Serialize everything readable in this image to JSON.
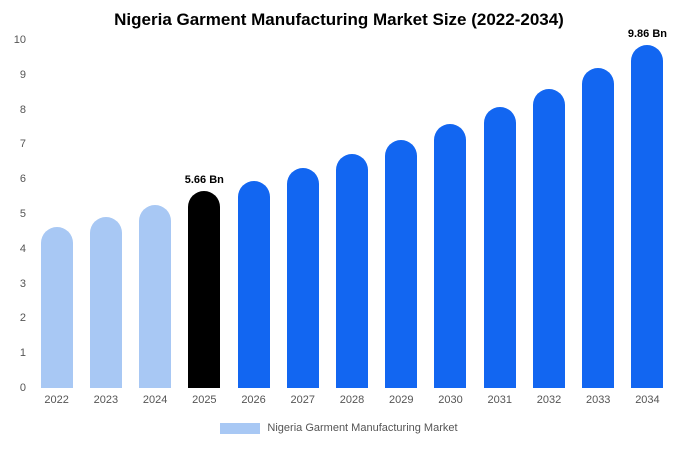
{
  "title": "Nigeria Garment Manufacturing Market Size (2022-2034)",
  "legend": {
    "label": "Nigeria Garment Manufacturing Market",
    "swatch_color": "#a8c8f4"
  },
  "colors": {
    "historical_bar": "#a8c8f4",
    "highlight_bar": "#000000",
    "forecast_bar": "#1266f1",
    "axis_text": "#555555"
  },
  "chart_data": {
    "type": "bar",
    "title": "Nigeria Garment Manufacturing Market Size (2022-2034)",
    "xlabel": "",
    "ylabel": "",
    "categories": [
      "2022",
      "2023",
      "2024",
      "2025",
      "2026",
      "2027",
      "2028",
      "2029",
      "2030",
      "2031",
      "2032",
      "2033",
      "2034"
    ],
    "values": [
      4.62,
      4.92,
      5.25,
      5.66,
      5.95,
      6.32,
      6.72,
      7.12,
      7.6,
      8.08,
      8.6,
      9.2,
      9.86
    ],
    "bar_colors": [
      "#a8c8f4",
      "#a8c8f4",
      "#a8c8f4",
      "#000000",
      "#1266f1",
      "#1266f1",
      "#1266f1",
      "#1266f1",
      "#1266f1",
      "#1266f1",
      "#1266f1",
      "#1266f1",
      "#1266f1"
    ],
    "annotations": [
      {
        "index": 3,
        "label": "5.66 Bn"
      },
      {
        "index": 12,
        "label": "9.86 Bn"
      }
    ],
    "ylim": [
      0,
      10
    ],
    "yticks": [
      0,
      1,
      2,
      3,
      4,
      5,
      6,
      7,
      8,
      9,
      10
    ],
    "grid": false,
    "legend_position": "bottom",
    "legend_entries": [
      "Nigeria Garment Manufacturing Market"
    ]
  }
}
